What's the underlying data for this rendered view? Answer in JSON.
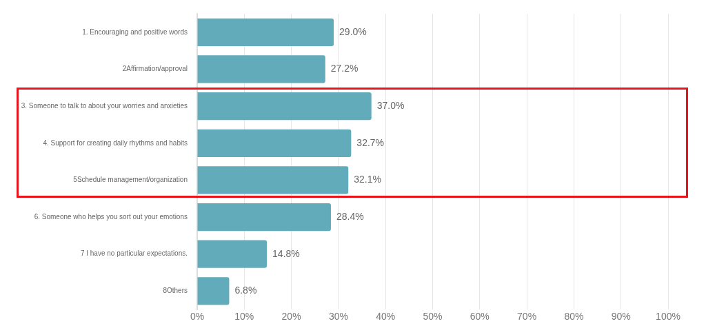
{
  "chart_data": {
    "type": "bar",
    "orientation": "horizontal",
    "categories": [
      "1. Encouraging and positive words",
      "2Affirmation/approval",
      "3. Someone to talk to about your worries and anxieties",
      "4. Support for creating daily rhythms and habits",
      "5Schedule management/organization",
      "6. Someone who helps you sort out your emotions",
      "7 I have no particular expectations.",
      "8Others"
    ],
    "values": [
      29.0,
      27.2,
      37.0,
      32.7,
      32.1,
      28.4,
      14.8,
      6.8
    ],
    "value_labels": [
      "29.0%",
      "27.2%",
      "37.0%",
      "32.7%",
      "32.1%",
      "28.4%",
      "14.8%",
      "6.8%"
    ],
    "color": "#62abbb",
    "xlim": [
      0,
      100
    ],
    "xticks": [
      {
        "value": 0,
        "label": "0%"
      },
      {
        "value": 10,
        "label": "10%"
      },
      {
        "value": 20,
        "label": "20%"
      },
      {
        "value": 30,
        "label": "30%"
      },
      {
        "value": 40,
        "label": "40%"
      },
      {
        "value": 50,
        "label": "50%"
      },
      {
        "value": 60,
        "label": "60%"
      },
      {
        "value": 70,
        "label": "70%"
      },
      {
        "value": 80,
        "label": "80%"
      },
      {
        "value": 90,
        "label": "90%"
      },
      {
        "value": 100,
        "label": "100%"
      }
    ],
    "grid": "x"
  }
}
